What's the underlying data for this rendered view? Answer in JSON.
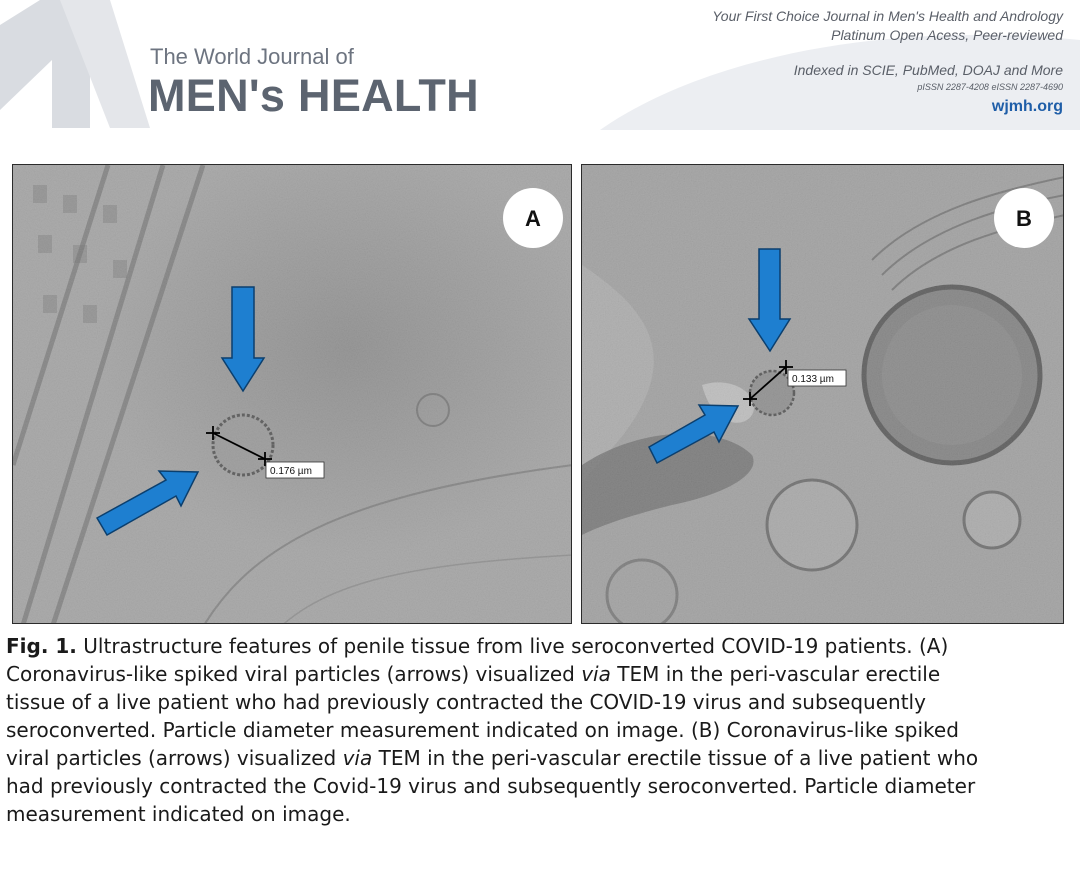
{
  "header": {
    "journal_title_top": "The World Journal of",
    "journal_title_main": "MEN's HEALTH",
    "tagline": "Your First Choice Journal in Men's Health and Andrology",
    "access": "Platinum Open Acess, Peer-reviewed",
    "indexed": "Indexed in SCIE, PubMed, DOAJ and More",
    "issn": "pISSN 2287-4208  eISSN 2287-4690",
    "website": "wjmh.org",
    "accent_color": "#1f5ea8"
  },
  "figure": {
    "panels": [
      {
        "label": "A",
        "measurement": "0.176 µm"
      },
      {
        "label": "B",
        "measurement": "0.133 µm"
      }
    ],
    "arrow_color": "#1e7fd0",
    "caption": {
      "fig_label": "Fig. 1.",
      "l1": "Ultrastructure features of penile tissue from live seroconverted COVID-19 patients. (A)",
      "l2a": "Coronavirus-like spiked viral particles (arrows) visualized ",
      "l2b": "via",
      "l2c": " TEM in the peri-vascular erectile",
      "l3": "tissue of a live patient who had previously contracted the COVID-19 virus and subsequently",
      "l4": "seroconverted. Particle diameter measurement indicated on image. (B) Coronavirus-like spiked",
      "l5a": "viral particles (arrows) visualized ",
      "l5b": "via",
      "l5c": " TEM in the peri-vascular erectile tissue of a live patient who",
      "l6": "had previously contracted the Covid-19 virus and subsequently seroconverted. Particle diameter",
      "l7": "measurement indicated on image."
    }
  }
}
